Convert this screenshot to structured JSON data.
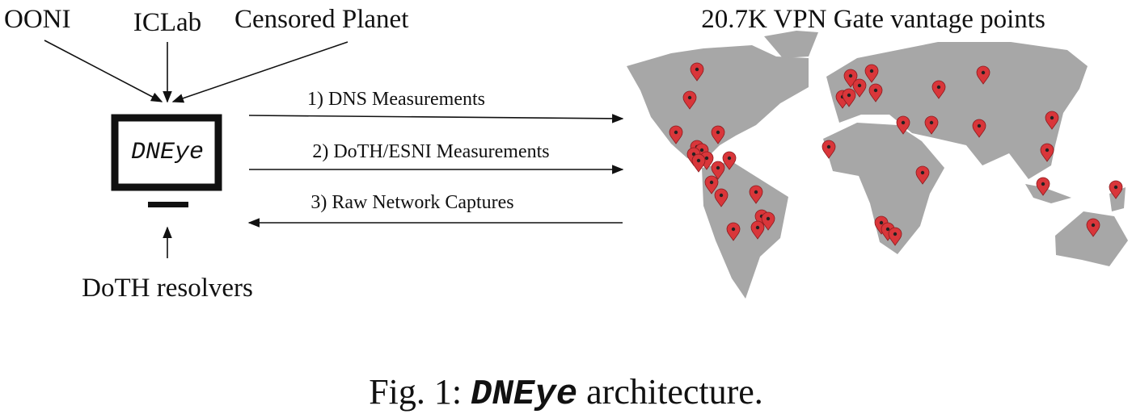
{
  "sources": [
    "OONI",
    "ICLab",
    "Censored Planet"
  ],
  "system": {
    "label": "DNEye"
  },
  "resolvers": {
    "label": "DoTH resolvers"
  },
  "flows": [
    "1) DNS Measurements",
    "2) DoTH/ESNI Measurements",
    "3) Raw Network Captures"
  ],
  "map": {
    "title": "20.7K VPN Gate vantage points"
  },
  "caption": {
    "prefix": "Fig. 1:",
    "name": "DNEye",
    "text": "architecture."
  }
}
